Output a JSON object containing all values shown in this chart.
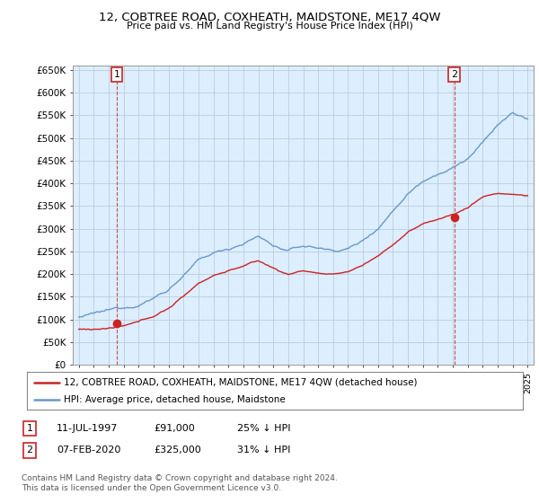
{
  "title": "12, COBTREE ROAD, COXHEATH, MAIDSTONE, ME17 4QW",
  "subtitle": "Price paid vs. HM Land Registry's House Price Index (HPI)",
  "ylabel_ticks": [
    "£0",
    "£50K",
    "£100K",
    "£150K",
    "£200K",
    "£250K",
    "£300K",
    "£350K",
    "£400K",
    "£450K",
    "£500K",
    "£550K",
    "£600K",
    "£650K"
  ],
  "ytick_values": [
    0,
    50000,
    100000,
    150000,
    200000,
    250000,
    300000,
    350000,
    400000,
    450000,
    500000,
    550000,
    600000,
    650000
  ],
  "xmin": 1994.6,
  "xmax": 2025.4,
  "ymin": 0,
  "ymax": 660000,
  "hpi_color": "#6699cc",
  "price_color": "#cc2222",
  "chart_bg": "#ddeeff",
  "point1_x": 1997.54,
  "point1_price": 91000,
  "point2_x": 2020.1,
  "point2_price": 325000,
  "legend_line1": "12, COBTREE ROAD, COXHEATH, MAIDSTONE, ME17 4QW (detached house)",
  "legend_line2": "HPI: Average price, detached house, Maidstone",
  "footer1": "Contains HM Land Registry data © Crown copyright and database right 2024.",
  "footer2": "This data is licensed under the Open Government Licence v3.0.",
  "table_row1": [
    "1",
    "11-JUL-1997",
    "£91,000",
    "25% ↓ HPI"
  ],
  "table_row2": [
    "2",
    "07-FEB-2020",
    "£325,000",
    "31% ↓ HPI"
  ],
  "bg_color": "#ffffff",
  "grid_color": "#bbccdd",
  "hpi_base": [
    105000,
    110000,
    115000,
    122000,
    132000,
    148000,
    168000,
    200000,
    230000,
    245000,
    255000,
    270000,
    285000,
    265000,
    252000,
    262000,
    258000,
    252000,
    258000,
    275000,
    305000,
    345000,
    385000,
    415000,
    435000,
    448000,
    468000,
    500000,
    540000,
    565000,
    550000
  ],
  "price_base": [
    78000,
    79000,
    81000,
    84000,
    91000,
    104000,
    122000,
    148000,
    178000,
    196000,
    207000,
    218000,
    228000,
    212000,
    198000,
    207000,
    202000,
    196000,
    203000,
    218000,
    238000,
    263000,
    292000,
    308000,
    320000,
    330000,
    345000,
    370000,
    378000,
    375000,
    372000
  ],
  "base_years": [
    1995,
    1996,
    1997,
    1998,
    1999,
    2000,
    2001,
    2002,
    2003,
    2004,
    2005,
    2006,
    2007,
    2008,
    2009,
    2010,
    2011,
    2012,
    2013,
    2014,
    2015,
    2016,
    2017,
    2018,
    2019,
    2020,
    2021,
    2022,
    2023,
    2024,
    2025
  ]
}
